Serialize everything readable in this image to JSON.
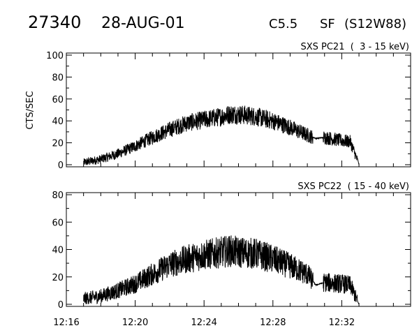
{
  "header": {
    "event_id": "27340",
    "date": "28-AUG-01",
    "flare_class": "C5.5",
    "flare_type": "SF",
    "location": "(S12W88)"
  },
  "chart_data": [
    {
      "type": "line",
      "title": "SXS PC21  (  3 - 15 keV)",
      "ylabel": "CTS/SEC",
      "xlabel": "",
      "ylim": [
        0,
        100
      ],
      "yticks": [
        0,
        20,
        40,
        60,
        80,
        100
      ],
      "xlim": [
        "12:16",
        "12:36"
      ],
      "xticks": [
        "12:16",
        "12:20",
        "12:24",
        "12:28",
        "12:32"
      ],
      "grid": false,
      "series": [
        {
          "values_description_free": true,
          "x": [
            "12:17:00",
            "12:18:00",
            "12:19:00",
            "12:20:00",
            "12:21:00",
            "12:22:00",
            "12:23:00",
            "12:24:00",
            "12:25:00",
            "12:25:30",
            "12:26:00",
            "12:27:00",
            "12:28:00",
            "12:29:00",
            "12:30:00",
            "12:30:30",
            "12:31:00",
            "12:32:00",
            "12:32:30",
            "12:33:00"
          ],
          "y": [
            2,
            5,
            10,
            17,
            25,
            32,
            38,
            41,
            44,
            46,
            46,
            44,
            40,
            34,
            27,
            24,
            25,
            22,
            21,
            0
          ]
        }
      ]
    },
    {
      "type": "line",
      "title": "SXS PC22  ( 15 - 40 keV)",
      "ylabel": "",
      "xlabel": "",
      "ylim": [
        0,
        80
      ],
      "yticks": [
        0,
        20,
        40,
        60,
        80
      ],
      "xlim": [
        "12:16",
        "12:36"
      ],
      "xticks": [
        "12:16",
        "12:20",
        "12:24",
        "12:28",
        "12:32"
      ],
      "grid": false,
      "series": [
        {
          "x": [
            "12:17:00",
            "12:18:00",
            "12:19:00",
            "12:20:00",
            "12:21:00",
            "12:22:00",
            "12:23:00",
            "12:24:00",
            "12:25:00",
            "12:25:30",
            "12:26:00",
            "12:27:00",
            "12:28:00",
            "12:29:00",
            "12:30:00",
            "12:30:30",
            "12:31:00",
            "12:32:00",
            "12:32:30",
            "12:33:00"
          ],
          "y": [
            4,
            6,
            10,
            15,
            22,
            29,
            33,
            36,
            38,
            39,
            38,
            37,
            33,
            28,
            22,
            14,
            16,
            15,
            14,
            0
          ]
        }
      ]
    }
  ]
}
